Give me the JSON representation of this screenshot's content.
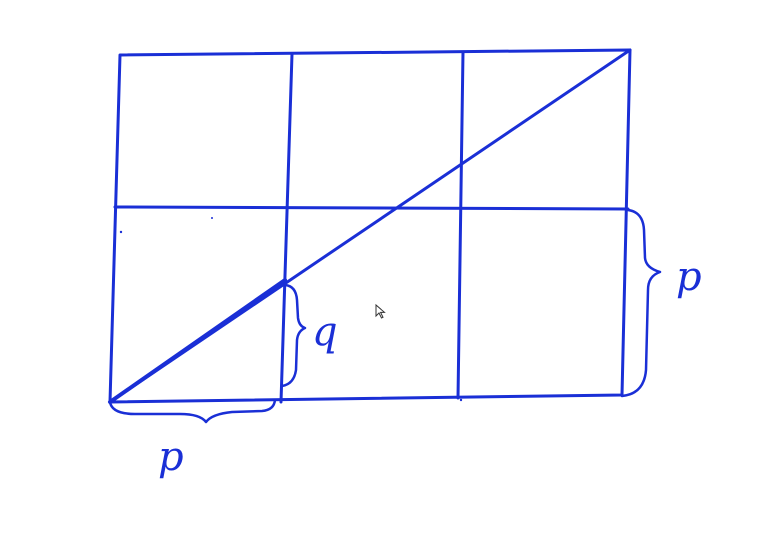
{
  "diagram": {
    "description_labels": {
      "bottom_brace": "p",
      "right_brace": "p",
      "inner_brace": "q"
    },
    "grid": {
      "rows": 2,
      "cols": 3
    },
    "colors": {
      "ink": "#1a2fd6",
      "background": "#ffffff"
    },
    "icons": {
      "pointer": "mouse-pointer-icon"
    }
  }
}
